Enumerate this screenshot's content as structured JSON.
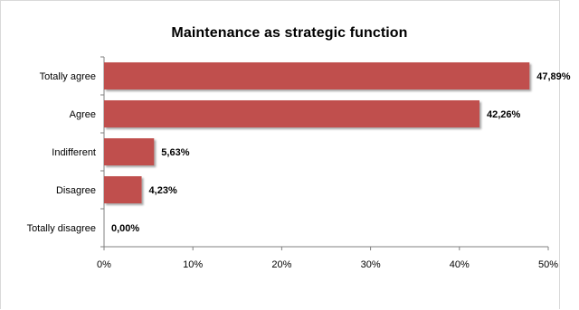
{
  "chart_data": {
    "type": "bar",
    "orientation": "horizontal",
    "title": "Maintenance as strategic function",
    "categories": [
      "Totally agree",
      "Agree",
      "Indifferent",
      "Disagree",
      "Totally disagree"
    ],
    "values": [
      47.89,
      42.26,
      5.63,
      4.23,
      0.0
    ],
    "value_labels": [
      "47,89%",
      "42,26%",
      "5,63%",
      "4,23%",
      "0,00%"
    ],
    "xlim": [
      0,
      50
    ],
    "xticks": [
      0,
      10,
      20,
      30,
      40,
      50
    ],
    "xtick_labels": [
      "0%",
      "10%",
      "20%",
      "30%",
      "40%",
      "50%"
    ],
    "xlabel": "",
    "ylabel": "",
    "grid": false,
    "legend": "none",
    "bar_color": "#c0504d"
  }
}
